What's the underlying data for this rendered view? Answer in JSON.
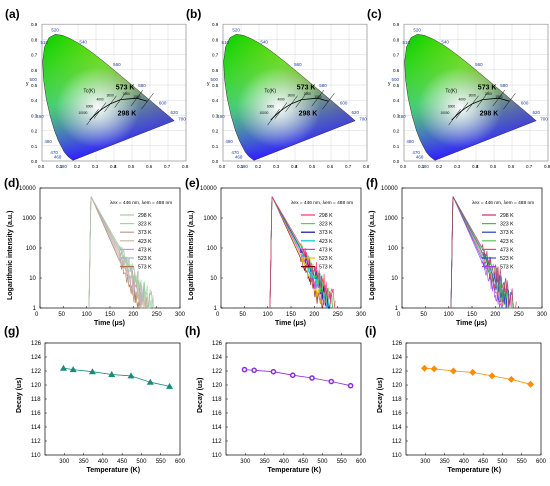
{
  "colors": {
    "cie_panel_bg": "#ffffff",
    "planck_locus": "#000000",
    "decay_g": "#1a8a7a",
    "decay_h": "#8a2be2",
    "decay_i": "#ff8c00"
  },
  "panels": {
    "cie": [
      {
        "label": "(a)",
        "hot": "573 K",
        "room": "298 K",
        "tc": "Tc(K)",
        "xlabel": "x",
        "ylabel": "y"
      },
      {
        "label": "(b)",
        "hot": "573 K",
        "room": "298 K",
        "tc": "Tc(K)",
        "xlabel": "x",
        "ylabel": "y"
      },
      {
        "label": "(c)",
        "hot": "573 K",
        "room": "298 K",
        "tc": "Tc(K)",
        "xlabel": "x",
        "ylabel": "y"
      }
    ],
    "cie_wavelengths": [
      "380",
      "460",
      "470",
      "480",
      "490",
      "500",
      "510",
      "520",
      "540",
      "560",
      "580",
      "600",
      "620",
      "700"
    ],
    "cie_ticks_x": [
      "0.0",
      "0.1",
      "0.2",
      "0.3",
      "0.4",
      "0.5",
      "0.6",
      "0.7",
      "0.8"
    ],
    "cie_ticks_y": [
      "0.0",
      "0.1",
      "0.2",
      "0.3",
      "0.4",
      "0.5",
      "0.6",
      "0.7",
      "0.8",
      "0.9"
    ],
    "cct_labels": [
      "10000",
      "6000",
      "4000",
      "3000",
      "2000",
      "1500"
    ],
    "decay_curves": [
      {
        "label": "(d)",
        "annotation": "λex = 446 nm, λem = 488 nm"
      },
      {
        "label": "(e)",
        "annotation": "λex = 446 nm, λem = 488 nm"
      },
      {
        "label": "(f)",
        "annotation": "λex = 446 nm, λem = 488 nm"
      }
    ],
    "decay_trend": [
      {
        "label": "(g)"
      },
      {
        "label": "(h)"
      },
      {
        "label": "(i)"
      }
    ]
  },
  "chart_data": [
    {
      "type": "line",
      "panel": "(d)",
      "xlabel": "Time (μs)",
      "ylabel": "Logarithmic intensity (a.u.)",
      "xlim": [
        0,
        300
      ],
      "ylim": [
        1,
        10000
      ],
      "yscale": "log",
      "xticks": [
        "0",
        "50",
        "100",
        "150",
        "200",
        "250",
        "300"
      ],
      "yticks": [
        "1",
        "10",
        "100",
        "1000",
        "10000"
      ],
      "legend": "top-right",
      "series": [
        {
          "name": "298 K",
          "color": "#b0c4b1",
          "tail_end": 245
        },
        {
          "name": "323 K",
          "color": "#98d8a0",
          "tail_end": 240
        },
        {
          "name": "373 K",
          "color": "#b8a090",
          "tail_end": 235
        },
        {
          "name": "423 K",
          "color": "#c8b8a8",
          "tail_end": 230
        },
        {
          "name": "473 K",
          "color": "#d0a0b8",
          "tail_end": 225
        },
        {
          "name": "523 K",
          "color": "#a8b4c8",
          "tail_end": 220
        },
        {
          "name": "573 K",
          "color": "#a87850",
          "tail_end": 215
        }
      ]
    },
    {
      "type": "line",
      "panel": "(e)",
      "xlabel": "Time (μs)",
      "ylabel": "Logarithmic intensity (a.u.)",
      "xlim": [
        0,
        300
      ],
      "ylim": [
        1,
        10000
      ],
      "yscale": "log",
      "xticks": [
        "0",
        "50",
        "100",
        "150",
        "200",
        "250",
        "300"
      ],
      "yticks": [
        "1",
        "10",
        "100",
        "1000",
        "10000"
      ],
      "legend": "top-right",
      "series": [
        {
          "name": "298 K",
          "color": "#ff3070",
          "tail_end": 250
        },
        {
          "name": "323 K",
          "color": "#40e040",
          "tail_end": 245
        },
        {
          "name": "373 K",
          "color": "#1010a0",
          "tail_end": 240
        },
        {
          "name": "423 K",
          "color": "#00c8c8",
          "tail_end": 235
        },
        {
          "name": "473 K",
          "color": "#e030e0",
          "tail_end": 230
        },
        {
          "name": "523 K",
          "color": "#e0c000",
          "tail_end": 225
        },
        {
          "name": "573 K",
          "color": "#800000",
          "tail_end": 220
        }
      ]
    },
    {
      "type": "line",
      "panel": "(f)",
      "xlabel": "Time (μs)",
      "ylabel": "Logarithmic intensity (a.u.)",
      "xlim": [
        0,
        300
      ],
      "ylim": [
        1,
        10000
      ],
      "yscale": "log",
      "xticks": [
        "0",
        "50",
        "100",
        "150",
        "200",
        "250",
        "300"
      ],
      "yticks": [
        "1",
        "10",
        "100",
        "1000",
        "10000"
      ],
      "legend": "top-right",
      "series": [
        {
          "name": "298 K",
          "color": "#c03070",
          "tail_end": 245
        },
        {
          "name": "323 K",
          "color": "#40c040",
          "tail_end": 240
        },
        {
          "name": "373 K",
          "color": "#2040c0",
          "tail_end": 235
        },
        {
          "name": "423 K",
          "color": "#60c060",
          "tail_end": 230
        },
        {
          "name": "473 K",
          "color": "#e05050",
          "tail_end": 225
        },
        {
          "name": "523 K",
          "color": "#3050e0",
          "tail_end": 220
        },
        {
          "name": "573 K",
          "color": "#a040e0",
          "tail_end": 215
        }
      ]
    },
    {
      "type": "line",
      "panel": "(g)",
      "xlabel": "Temperature (K)",
      "ylabel": "Decay (us)",
      "xlim": [
        250,
        600
      ],
      "ylim": [
        110,
        126
      ],
      "xticks": [
        "300",
        "350",
        "400",
        "450",
        "500",
        "550",
        "600"
      ],
      "yticks": [
        "110",
        "112",
        "114",
        "116",
        "118",
        "120",
        "122",
        "124",
        "126"
      ],
      "marker": "triangle",
      "color": "#1a8a7a",
      "x": [
        298,
        323,
        373,
        423,
        473,
        523,
        573
      ],
      "y": [
        122.4,
        122.2,
        121.9,
        121.5,
        121.3,
        120.4,
        119.8
      ]
    },
    {
      "type": "line",
      "panel": "(h)",
      "xlabel": "Temperature (K)",
      "ylabel": "Decay (us)",
      "xlim": [
        250,
        600
      ],
      "ylim": [
        110,
        126
      ],
      "xticks": [
        "300",
        "350",
        "400",
        "450",
        "500",
        "550",
        "600"
      ],
      "yticks": [
        "110",
        "112",
        "114",
        "116",
        "118",
        "120",
        "122",
        "124",
        "126"
      ],
      "marker": "circle",
      "color": "#8a2be2",
      "x": [
        298,
        323,
        373,
        423,
        473,
        523,
        573
      ],
      "y": [
        122.2,
        122.1,
        121.9,
        121.4,
        121.0,
        120.5,
        119.9
      ]
    },
    {
      "type": "line",
      "panel": "(i)",
      "xlabel": "Temperature (K)",
      "ylabel": "Decay (us)",
      "xlim": [
        250,
        600
      ],
      "ylim": [
        110,
        126
      ],
      "xticks": [
        "300",
        "350",
        "400",
        "450",
        "500",
        "550",
        "600"
      ],
      "yticks": [
        "110",
        "112",
        "114",
        "116",
        "118",
        "120",
        "122",
        "124",
        "126"
      ],
      "marker": "diamond",
      "color": "#ff8c00",
      "x": [
        298,
        323,
        373,
        423,
        473,
        523,
        573
      ],
      "y": [
        122.4,
        122.3,
        122.0,
        121.8,
        121.3,
        120.8,
        120.1
      ]
    }
  ]
}
